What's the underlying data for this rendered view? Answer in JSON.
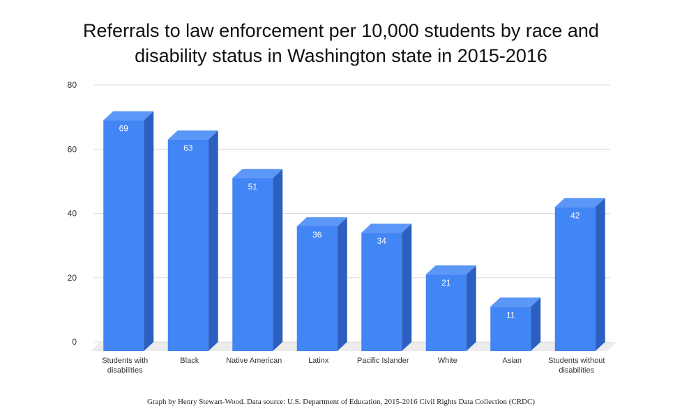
{
  "title_lines": [
    "Referrals to law enforcement per 10,000 students by race and",
    "disability status in Washington state in 2015-2016"
  ],
  "source": "Graph by Henry Stewart-Wood. Data source: U.S. Department of Education, 2015-2016 Civil Rights Data Collection (CRDC)",
  "colors": {
    "bar_front": "#4285f4",
    "bar_side": "#2c5fbf",
    "bar_top": "#5b97f6",
    "grid": "#dddddd",
    "floor": "#ececec"
  },
  "chart_data": {
    "type": "bar",
    "title": "Referrals to law enforcement per 10,000 students by race and disability status in Washington state in 2015-2016",
    "xlabel": "",
    "ylabel": "",
    "ylim": [
      0,
      80
    ],
    "yticks": [
      0,
      20,
      40,
      60,
      80
    ],
    "grid": true,
    "categories": [
      [
        "Students with",
        "disabilities"
      ],
      [
        "Black"
      ],
      [
        "Native American"
      ],
      [
        "Latinx"
      ],
      [
        "Pacific Islander"
      ],
      [
        "White"
      ],
      [
        "Asian"
      ],
      [
        "Students without",
        "disabilities"
      ]
    ],
    "values": [
      69,
      63,
      51,
      36,
      34,
      21,
      11,
      42
    ]
  }
}
